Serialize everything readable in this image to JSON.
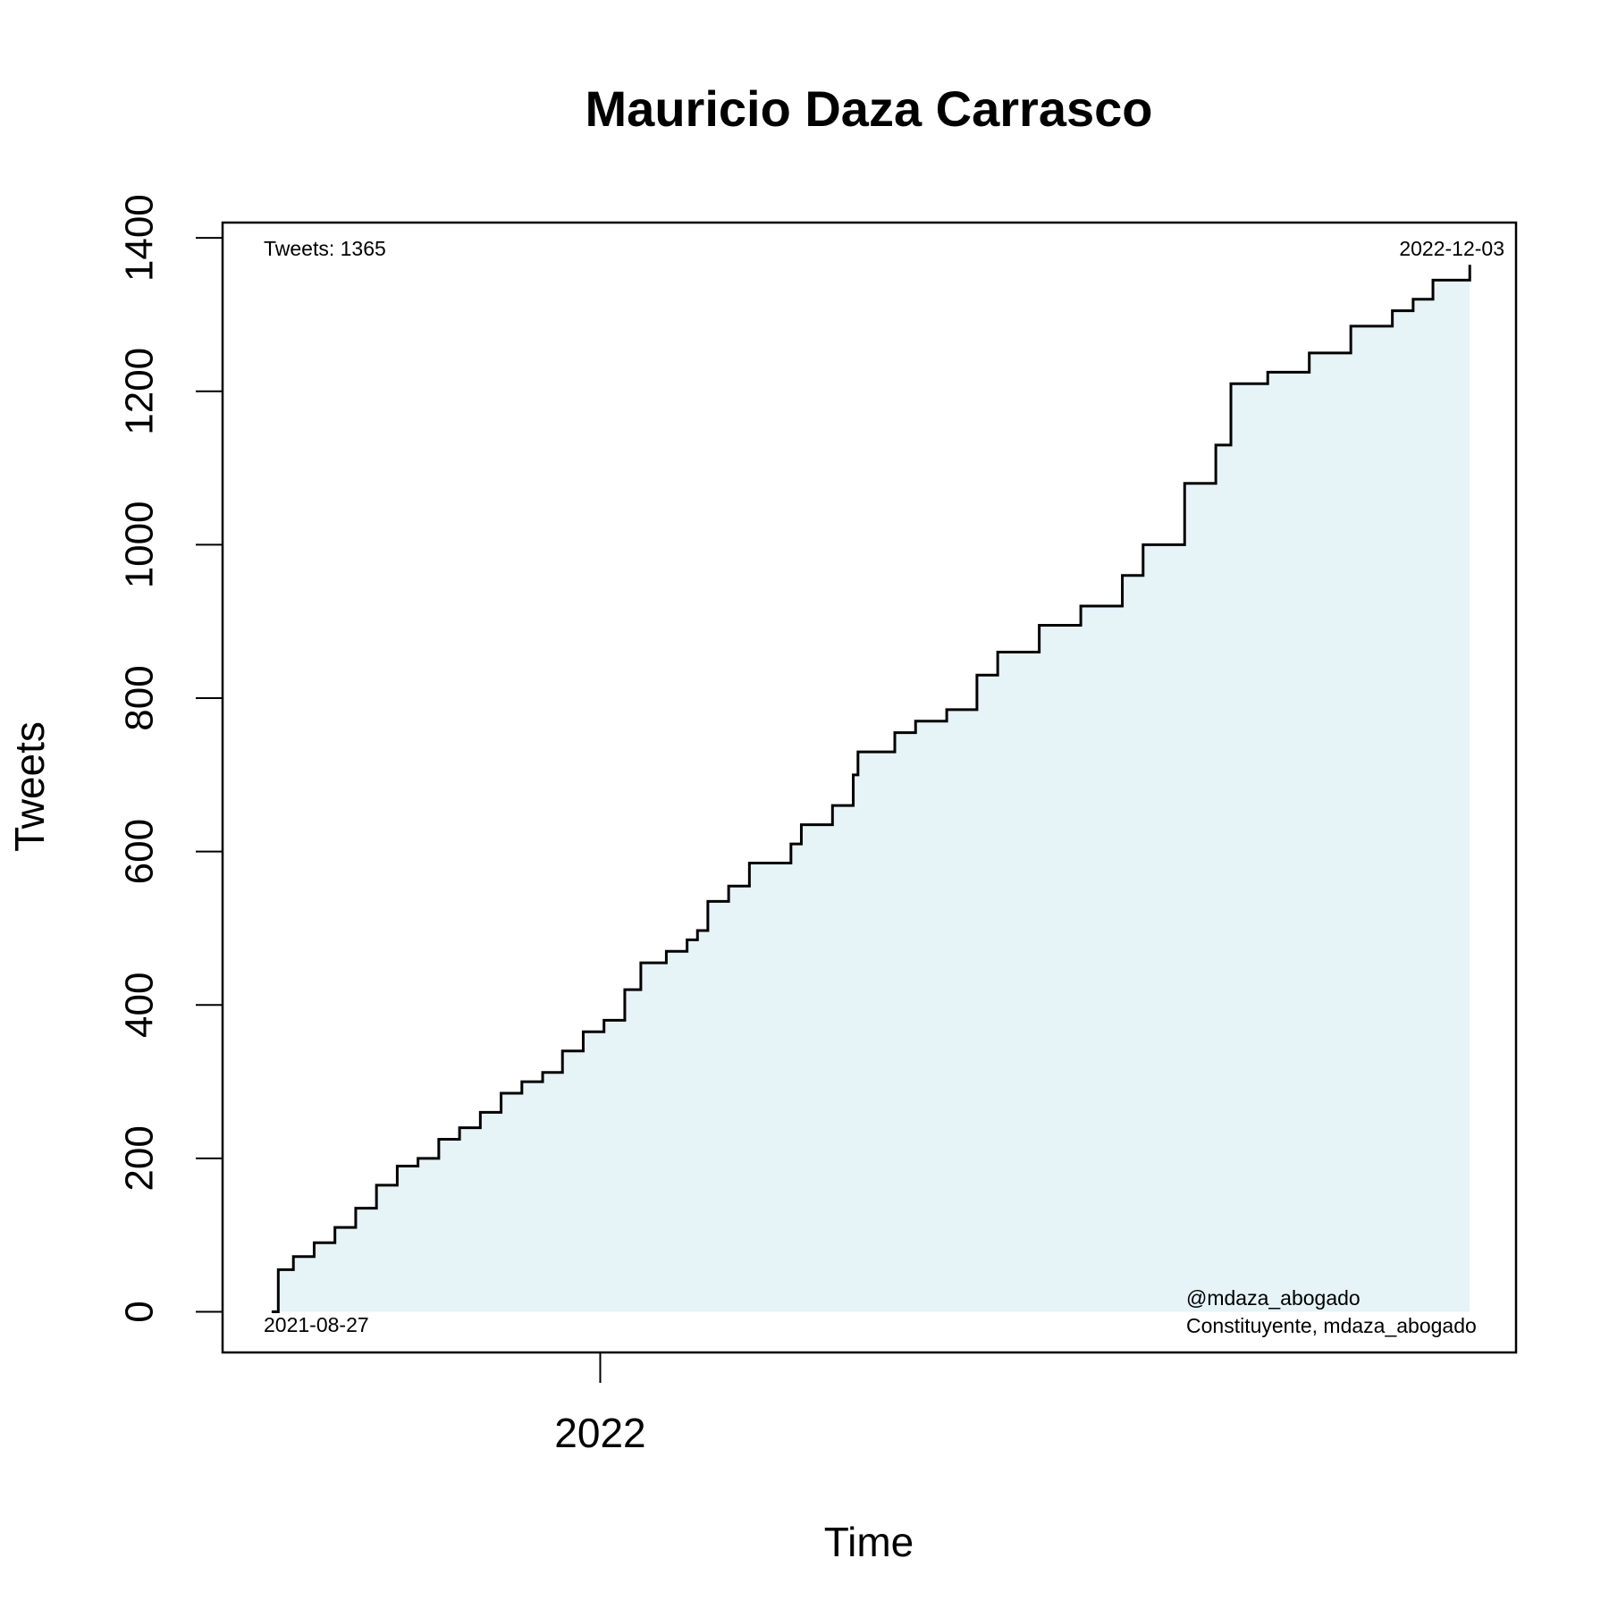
{
  "chart_data": {
    "type": "line",
    "title": "Mauricio Daza Carrasco",
    "x_label": "Time",
    "y_label": "Tweets",
    "annotations": [
      "Tweets: 1365",
      "2022-12-03",
      "2021-08-27",
      "@mdaza_abogado",
      "Constituyente, mdaza_abogado"
    ],
    "x": [
      2021.652,
      2021.659,
      2021.675,
      2021.697,
      2021.719,
      2021.741,
      2021.763,
      2021.785,
      2021.807,
      2021.829,
      2021.851,
      2021.873,
      2021.895,
      2021.917,
      2021.939,
      2021.96,
      2021.982,
      2022.004,
      2022.026,
      2022.043,
      2022.07,
      2022.092,
      2022.103,
      2022.114,
      2022.136,
      2022.158,
      2022.202,
      2022.213,
      2022.246,
      2022.268,
      2022.273,
      2022.312,
      2022.334,
      2022.367,
      2022.399,
      2022.421,
      2022.465,
      2022.509,
      2022.553,
      2022.575,
      2022.619,
      2022.652,
      2022.668,
      2022.707,
      2022.751,
      2022.795,
      2022.839,
      2022.861,
      2022.882,
      2022.921
    ],
    "series": [
      {
        "name": "Tweets",
        "color": "#000000",
        "fill": "#e6f3f7",
        "values": [
          0,
          55,
          72,
          90,
          110,
          135,
          165,
          190,
          200,
          225,
          240,
          260,
          285,
          300,
          312,
          340,
          365,
          380,
          420,
          455,
          470,
          485,
          497,
          535,
          555,
          585,
          610,
          635,
          660,
          700,
          730,
          755,
          770,
          785,
          830,
          860,
          895,
          920,
          960,
          1000,
          1080,
          1130,
          1210,
          1225,
          1250,
          1285,
          1305,
          1320,
          1345,
          1365
        ]
      }
    ],
    "xlim": [
      2021.6,
      2022.97
    ],
    "ylim": [
      -53,
      1420
    ],
    "xticks": [
      2022
    ],
    "yticks": [
      0,
      200,
      400,
      600,
      800,
      1000,
      1200,
      1400
    ],
    "grid": false
  }
}
